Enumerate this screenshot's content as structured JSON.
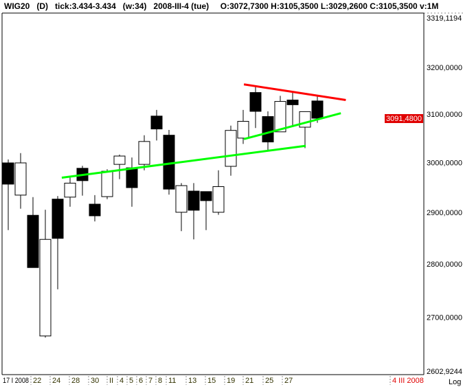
{
  "header": {
    "symbol": "WIG20",
    "period": "(D)",
    "tick": "tick:3.434-3.434",
    "window": "(w:34)",
    "date": "2008-III-4 (tue)",
    "ohlcv": "O:3072,7300 H:3105,3500 L:3029,2600 C:3105,3500 v:1M"
  },
  "chart_data": {
    "type": "candlestick",
    "scale": "log",
    "ylim": [
      2602.9244,
      3319.1194
    ],
    "y_tick_labels": [
      "3319,1194",
      "3200,0000",
      "3100,0000",
      "3000,0000",
      "2900,0000",
      "2800,0000",
      "2700,0000",
      "2602,9244"
    ],
    "y_tick_values": [
      3319.1194,
      3200,
      3100,
      3000,
      2900,
      2800,
      2700,
      2602.9244
    ],
    "scale_label": "Log",
    "last_price_label": "3091,4800",
    "last_price": 3091.48,
    "x_tick_labels": [
      "17 I 2008",
      "22",
      "24",
      "28",
      "30",
      "II",
      "4",
      "5",
      "6",
      "7",
      "8",
      "11",
      "13",
      "15",
      "19",
      "21",
      "25",
      "27",
      "4 III 2008"
    ],
    "candles": [
      {
        "o": 2999,
        "h": 3006,
        "l": 2865,
        "c": 2956
      },
      {
        "o": 2934,
        "h": 3019,
        "l": 2907,
        "c": 2999
      },
      {
        "o": 2894,
        "h": 2930,
        "l": 2793,
        "c": 2793
      },
      {
        "o": 2666,
        "h": 2905,
        "l": 2663,
        "c": 2847
      },
      {
        "o": 2926,
        "h": 2932,
        "l": 2752,
        "c": 2849
      },
      {
        "o": 2930,
        "h": 2969,
        "l": 2911,
        "c": 2958
      },
      {
        "o": 2988,
        "h": 2993,
        "l": 2933,
        "c": 2963
      },
      {
        "o": 2916,
        "h": 2934,
        "l": 2882,
        "c": 2893
      },
      {
        "o": 2931,
        "h": 2986,
        "l": 2926,
        "c": 2982
      },
      {
        "o": 2996,
        "h": 3016,
        "l": 2966,
        "c": 3013
      },
      {
        "o": 2989,
        "h": 3010,
        "l": 2911,
        "c": 2949
      },
      {
        "o": 2996,
        "h": 3056,
        "l": 2984,
        "c": 3043
      },
      {
        "o": 3096,
        "h": 3109,
        "l": 3045,
        "c": 3069
      },
      {
        "o": 3056,
        "h": 3067,
        "l": 2935,
        "c": 2946
      },
      {
        "o": 2900,
        "h": 2958,
        "l": 2863,
        "c": 2953
      },
      {
        "o": 2942,
        "h": 2958,
        "l": 2847,
        "c": 2904
      },
      {
        "o": 2941,
        "h": 2941,
        "l": 2865,
        "c": 2923
      },
      {
        "o": 2900,
        "h": 2984,
        "l": 2895,
        "c": 2951
      },
      {
        "o": 2992,
        "h": 3076,
        "l": 2973,
        "c": 3066
      },
      {
        "o": 3050,
        "h": 3109,
        "l": 3038,
        "c": 3085
      },
      {
        "o": 3146,
        "h": 3158,
        "l": 3071,
        "c": 3106
      },
      {
        "o": 3095,
        "h": 3106,
        "l": 3024,
        "c": 3042
      },
      {
        "o": 3063,
        "h": 3139,
        "l": 3063,
        "c": 3127
      },
      {
        "o": 3130,
        "h": 3146,
        "l": 3073,
        "c": 3120
      },
      {
        "o": 3072.73,
        "h": 3105.35,
        "l": 3029.26,
        "c": 3105.35
      },
      {
        "o": 3128,
        "h": 3139,
        "l": 3082,
        "c": 3091.48
      }
    ],
    "trendlines": [
      {
        "color": "#ff0000",
        "from": [
          19.06,
          3163.5
        ],
        "to": [
          27.3,
          3130
        ]
      },
      {
        "color": "#00ff00",
        "from": [
          19.06,
          3048
        ],
        "to": [
          26.9,
          3102
        ]
      },
      {
        "color": "#00ff00",
        "from": [
          4.33,
          2969
        ],
        "to": [
          24.06,
          3034
        ]
      }
    ],
    "colors": {
      "up": "#ffffff",
      "down": "#000000",
      "last_price_bg": "#e00000",
      "date_highlight": "#e00000",
      "x_labels": "#333300"
    }
  }
}
